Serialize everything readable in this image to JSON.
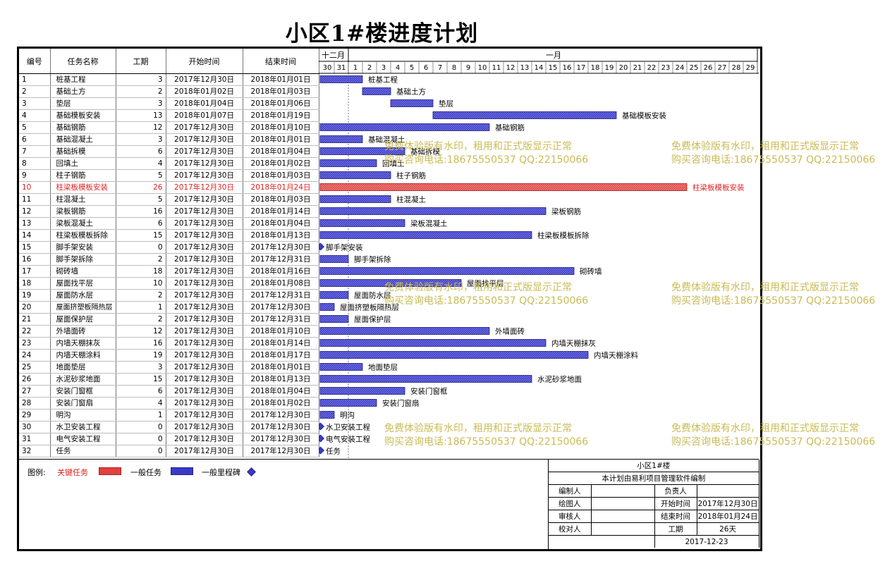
{
  "title": "小区1#楼进度计划",
  "headers": {
    "id": "编号",
    "name": "任务名称",
    "duration": "工期",
    "start": "开始时间",
    "end": "结束时间"
  },
  "timescale": {
    "months": [
      {
        "label": "十二月",
        "days": [
          "30",
          "31"
        ]
      },
      {
        "label": "一月",
        "days": [
          "1",
          "2",
          "3",
          "4",
          "5",
          "6",
          "7",
          "8",
          "9",
          "10",
          "11",
          "12",
          "13",
          "14",
          "15",
          "16",
          "17",
          "18",
          "19",
          "20",
          "21",
          "22",
          "23",
          "24",
          "25",
          "26",
          "27",
          "28",
          "29"
        ]
      }
    ]
  },
  "colors": {
    "normal_bar": "#3a3ac8",
    "critical_bar": "#e04040",
    "critical_text": "#e02020",
    "milestone": "#3a3ac8",
    "watermark": "#c9bb55"
  },
  "tasks": [
    {
      "id": "1",
      "name": "桩基工程",
      "duration": "3",
      "start": "2017年12月30日",
      "end": "2018年01月01日",
      "start_day": 0,
      "days": 3,
      "type": "normal"
    },
    {
      "id": "2",
      "name": "基础土方",
      "duration": "2",
      "start": "2018年01月02日",
      "end": "2018年01月03日",
      "start_day": 3,
      "days": 2,
      "type": "normal"
    },
    {
      "id": "3",
      "name": "垫层",
      "duration": "3",
      "start": "2018年01月04日",
      "end": "2018年01月06日",
      "start_day": 5,
      "days": 3,
      "type": "normal"
    },
    {
      "id": "4",
      "name": "基础模板安装",
      "duration": "13",
      "start": "2018年01月07日",
      "end": "2018年01月19日",
      "start_day": 8,
      "days": 13,
      "type": "normal"
    },
    {
      "id": "5",
      "name": "基础钢筋",
      "duration": "12",
      "start": "2017年12月30日",
      "end": "2018年01月10日",
      "start_day": 0,
      "days": 12,
      "type": "normal"
    },
    {
      "id": "6",
      "name": "基础混凝土",
      "duration": "3",
      "start": "2017年12月30日",
      "end": "2018年01月01日",
      "start_day": 0,
      "days": 3,
      "type": "normal"
    },
    {
      "id": "7",
      "name": "基础拆模",
      "duration": "6",
      "start": "2017年12月30日",
      "end": "2018年01月04日",
      "start_day": 0,
      "days": 6,
      "type": "normal"
    },
    {
      "id": "8",
      "name": "回填土",
      "duration": "4",
      "start": "2017年12月30日",
      "end": "2018年01月02日",
      "start_day": 0,
      "days": 4,
      "type": "normal"
    },
    {
      "id": "9",
      "name": "柱子钢筋",
      "duration": "5",
      "start": "2017年12月30日",
      "end": "2018年01月03日",
      "start_day": 0,
      "days": 5,
      "type": "normal"
    },
    {
      "id": "10",
      "name": "柱梁板模板安装",
      "duration": "26",
      "start": "2017年12月30日",
      "end": "2018年01月24日",
      "start_day": 0,
      "days": 26,
      "type": "critical"
    },
    {
      "id": "11",
      "name": "柱混凝土",
      "duration": "5",
      "start": "2017年12月30日",
      "end": "2018年01月03日",
      "start_day": 0,
      "days": 5,
      "type": "normal"
    },
    {
      "id": "12",
      "name": "梁板钢筋",
      "duration": "16",
      "start": "2017年12月30日",
      "end": "2018年01月14日",
      "start_day": 0,
      "days": 16,
      "type": "normal"
    },
    {
      "id": "13",
      "name": "梁板混凝土",
      "duration": "6",
      "start": "2017年12月30日",
      "end": "2018年01月04日",
      "start_day": 0,
      "days": 6,
      "type": "normal"
    },
    {
      "id": "14",
      "name": "柱梁板模板拆除",
      "duration": "15",
      "start": "2017年12月30日",
      "end": "2018年01月13日",
      "start_day": 0,
      "days": 15,
      "type": "normal"
    },
    {
      "id": "15",
      "name": "脚手架安装",
      "duration": "0",
      "start": "2017年12月30日",
      "end": "2017年12月30日",
      "start_day": 0,
      "days": 0,
      "type": "milestone"
    },
    {
      "id": "16",
      "name": "脚手架拆除",
      "duration": "2",
      "start": "2017年12月30日",
      "end": "2017年12月31日",
      "start_day": 0,
      "days": 2,
      "type": "normal"
    },
    {
      "id": "17",
      "name": "砌砖墙",
      "duration": "18",
      "start": "2017年12月30日",
      "end": "2018年01月16日",
      "start_day": 0,
      "days": 18,
      "type": "normal"
    },
    {
      "id": "18",
      "name": "屋面找平层",
      "duration": "10",
      "start": "2017年12月30日",
      "end": "2018年01月08日",
      "start_day": 0,
      "days": 10,
      "type": "normal"
    },
    {
      "id": "19",
      "name": "屋面防水层",
      "duration": "2",
      "start": "2017年12月30日",
      "end": "2017年12月31日",
      "start_day": 0,
      "days": 2,
      "type": "normal"
    },
    {
      "id": "20",
      "name": "屋面挤塑板隔热层",
      "duration": "1",
      "start": "2017年12月30日",
      "end": "2017年12月30日",
      "start_day": 0,
      "days": 1,
      "type": "normal"
    },
    {
      "id": "21",
      "name": "屋面保护层",
      "duration": "2",
      "start": "2017年12月30日",
      "end": "2017年12月31日",
      "start_day": 0,
      "days": 2,
      "type": "normal"
    },
    {
      "id": "22",
      "name": "外墙面砖",
      "duration": "12",
      "start": "2017年12月30日",
      "end": "2018年01月10日",
      "start_day": 0,
      "days": 12,
      "type": "normal"
    },
    {
      "id": "23",
      "name": "内墙天棚抹灰",
      "duration": "16",
      "start": "2017年12月30日",
      "end": "2018年01月14日",
      "start_day": 0,
      "days": 16,
      "type": "normal"
    },
    {
      "id": "24",
      "name": "内墙天棚涂料",
      "duration": "19",
      "start": "2017年12月30日",
      "end": "2018年01月17日",
      "start_day": 0,
      "days": 19,
      "type": "normal"
    },
    {
      "id": "25",
      "name": "地面垫层",
      "duration": "3",
      "start": "2017年12月30日",
      "end": "2018年01月01日",
      "start_day": 0,
      "days": 3,
      "type": "normal"
    },
    {
      "id": "26",
      "name": "水泥砂浆地面",
      "duration": "15",
      "start": "2017年12月30日",
      "end": "2018年01月13日",
      "start_day": 0,
      "days": 15,
      "type": "normal"
    },
    {
      "id": "27",
      "name": "安装门窗框",
      "duration": "6",
      "start": "2017年12月30日",
      "end": "2018年01月04日",
      "start_day": 0,
      "days": 6,
      "type": "normal"
    },
    {
      "id": "28",
      "name": "安装门窗扇",
      "duration": "4",
      "start": "2017年12月30日",
      "end": "2018年01月02日",
      "start_day": 0,
      "days": 4,
      "type": "normal"
    },
    {
      "id": "29",
      "name": "明沟",
      "duration": "1",
      "start": "2017年12月30日",
      "end": "2017年12月30日",
      "start_day": 0,
      "days": 1,
      "type": "normal"
    },
    {
      "id": "30",
      "name": "水卫安装工程",
      "duration": "0",
      "start": "2017年12月30日",
      "end": "2017年12月30日",
      "start_day": 0,
      "days": 0,
      "type": "milestone"
    },
    {
      "id": "31",
      "name": "电气安装工程",
      "duration": "0",
      "start": "2017年12月30日",
      "end": "2017年12月30日",
      "start_day": 0,
      "days": 0,
      "type": "milestone"
    },
    {
      "id": "32",
      "name": "任务",
      "duration": "0",
      "start": "2017年12月30日",
      "end": "2017年12月30日",
      "start_day": 0,
      "days": 0,
      "type": "milestone"
    }
  ],
  "legend": {
    "label": "图例:",
    "critical": "关键任务",
    "normal": "一般任务",
    "milestone": "一般里程碑"
  },
  "info": {
    "project": "小区1#楼",
    "software": "本计划由易利项目管理软件编制",
    "editor_label": "编制人",
    "editor_value": "",
    "owner_label": "负责人",
    "owner_value": "",
    "drawer_label": "绘图人",
    "drawer_value": "",
    "start_label": "开始时间",
    "start_value": "2017年12月30日",
    "reviewer_label": "审核人",
    "reviewer_value": "",
    "end_label": "结束时间",
    "end_value": "2018年01月24日",
    "checker_label": "校对人",
    "checker_value": "",
    "duration_label": "工期",
    "duration_value": "26天",
    "date": "2017-12-23"
  },
  "watermark": {
    "line1": "免费体验版有水印，租用和正式版显示正常",
    "line2": "购买咨询电话:18675550537 QQ:22150066"
  }
}
